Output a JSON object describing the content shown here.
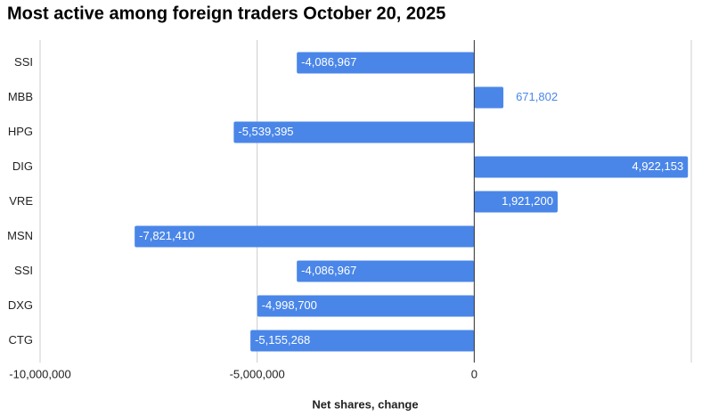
{
  "chart_data": {
    "type": "bar",
    "orientation": "horizontal",
    "title": "Most active among foreign traders October 20, 2025",
    "x_label": "Net shares, change",
    "categories": [
      "SSI",
      "MBB",
      "HPG",
      "DIG",
      "VRE",
      "MSN",
      "SSI",
      "DXG",
      "CTG"
    ],
    "values": [
      -4086967,
      671802,
      -5539395,
      4922153,
      1921200,
      -7821410,
      -4086967,
      -4998700,
      -5155268
    ],
    "value_labels": [
      "-4,086,967",
      "671,802",
      "-5,539,395",
      "4,922,153",
      "1,921,200",
      "-7,821,410",
      "-4,086,967",
      "-4,998,700",
      "-5,155,268"
    ],
    "color": "#4a86e8",
    "xlim": [
      -10000000,
      5000000
    ],
    "xticks": [
      {
        "value": -10000000,
        "label": "-10,000,000"
      },
      {
        "value": -5000000,
        "label": "-5,000,000"
      },
      0
    ],
    "grid": true
  }
}
